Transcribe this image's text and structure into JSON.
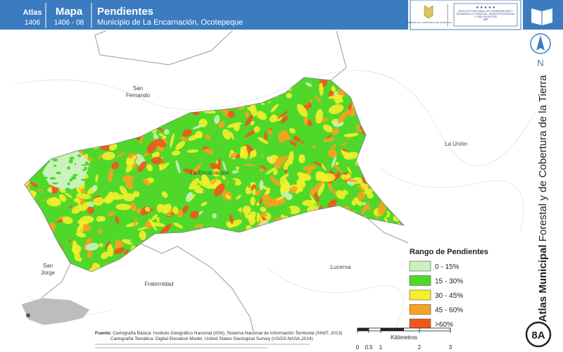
{
  "header": {
    "atlas_label": "Atlas",
    "atlas_code": "1406",
    "map_label": "Mapa",
    "map_code": "1406 - 08",
    "title": "Pendientes",
    "subtitle": "Municipio de La Encarnación, Ocotepeque"
  },
  "logos": {
    "government": "GOBIERNO DE LA REPÚBLICA DE HONDURAS",
    "institute": "INSTITUTO NACIONAL DE CONSERVACIÓN Y DESARROLLO FORESTAL, ÁREAS PROTEGIDAS Y VIDA SILVESTRE",
    "acronym": "ICF"
  },
  "side": {
    "title_bold": "Atlas Municipal",
    "title_rest": "Forestal y de Cobertura de la Tierra",
    "north": "N",
    "page": "8A"
  },
  "places": [
    "San Fernando",
    "La Unión",
    "La Encarnación",
    "San Jorge",
    "Lucerna",
    "Fraternidad"
  ],
  "legend": {
    "title": "Rango de Pendientes",
    "items": [
      {
        "label": "0 - 15%",
        "color": "#c9f2bd"
      },
      {
        "label": "15 - 30%",
        "color": "#4fd82a"
      },
      {
        "label": "30 - 45%",
        "color": "#f3f02a"
      },
      {
        "label": "45 - 60%",
        "color": "#f7a21e"
      },
      {
        "label": ">60%",
        "color": "#f0561c"
      }
    ]
  },
  "sources": {
    "label": "Fuente:",
    "lines": [
      "Cartografía Básica: Instituto Geográfico Nacional (IGN), Sistema Nacional de Información Territorial (SINIT, 2013)",
      "Cartografía Temática: Digital Elevation Model, United States Geological Survey (USGS-NASA,2014)"
    ]
  },
  "scale": {
    "unit": "Kilómetros",
    "ticks": [
      "0",
      "0.5",
      "1",
      "2",
      "3"
    ]
  }
}
